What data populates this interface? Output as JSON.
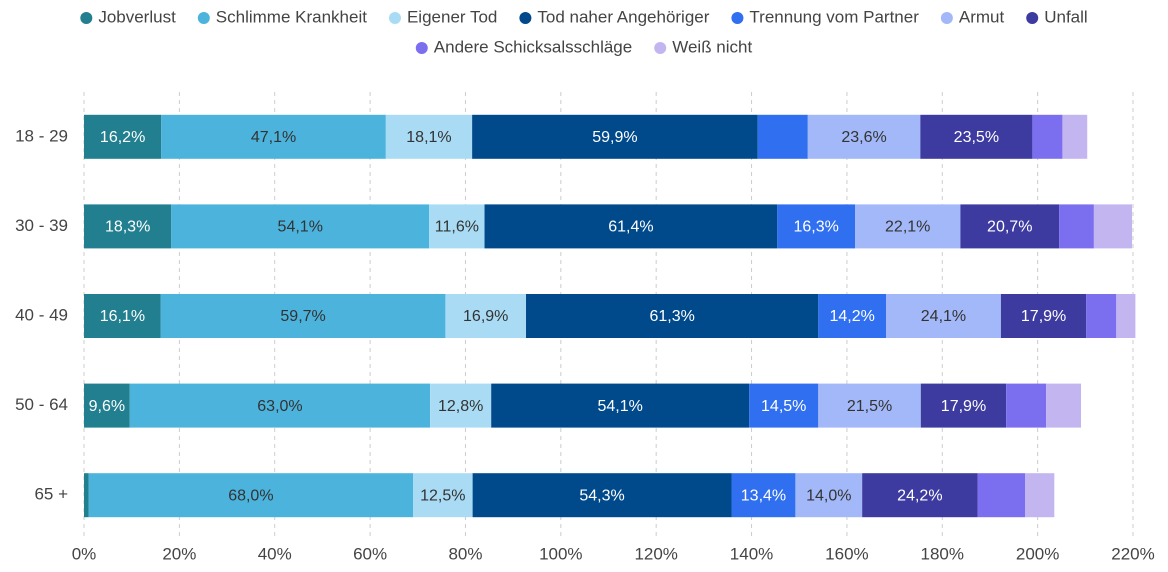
{
  "chart_data": {
    "type": "stacked_barh",
    "categories": [
      "18 - 29",
      "30 - 39",
      "40 - 49",
      "50 - 64",
      "65 +"
    ],
    "series": [
      {
        "name": "Jobverlust",
        "color": "#217f8f",
        "values": [
          16.2,
          18.3,
          16.1,
          9.6,
          1.0
        ],
        "value_labels": [
          "16,2%",
          "18,3%",
          "16,1%",
          "9,6%",
          null
        ]
      },
      {
        "name": "Schlimme Krankheit",
        "color": "#4cb3dd",
        "values": [
          47.1,
          54.1,
          59.7,
          63.0,
          68.0
        ],
        "value_labels": [
          "47,1%",
          "54,1%",
          "59,7%",
          "63,0%",
          "68,0%"
        ]
      },
      {
        "name": "Eigener Tod",
        "color": "#a9dcf4",
        "values": [
          18.1,
          11.6,
          16.9,
          12.8,
          12.5
        ],
        "value_labels": [
          "18,1%",
          "11,6%",
          "16,9%",
          "12,8%",
          "12,5%"
        ]
      },
      {
        "name": "Tod naher Angehöriger",
        "color": "#004a8c",
        "values": [
          59.9,
          61.4,
          61.3,
          54.1,
          54.3
        ],
        "value_labels": [
          "59,9%",
          "61,4%",
          "61,3%",
          "54,1%",
          "54,3%"
        ]
      },
      {
        "name": "Trennung vom Partner",
        "color": "#2f6ff0",
        "values": [
          10.5,
          16.3,
          14.2,
          14.5,
          13.4
        ],
        "value_labels": [
          null,
          "16,3%",
          "14,2%",
          "14,5%",
          "13,4%"
        ]
      },
      {
        "name": "Armut",
        "color": "#a3b8f8",
        "values": [
          23.6,
          22.1,
          24.1,
          21.5,
          14.0
        ],
        "value_labels": [
          "23,6%",
          "22,1%",
          "24,1%",
          "21,5%",
          "14,0%"
        ]
      },
      {
        "name": "Unfall",
        "color": "#3d3aa0",
        "values": [
          23.5,
          20.7,
          17.9,
          17.9,
          24.2
        ],
        "value_labels": [
          "23,5%",
          "20,7%",
          "17,9%",
          "17,9%",
          "24,2%"
        ]
      },
      {
        "name": "Andere Schicksalsschläge",
        "color": "#7b6ff0",
        "values": [
          6.3,
          7.3,
          6.3,
          8.4,
          10.0
        ],
        "value_labels": [
          null,
          null,
          null,
          null,
          null
        ]
      },
      {
        "name": "Weiß nicht",
        "color": "#c3b6f0",
        "values": [
          5.2,
          8.0,
          4.0,
          7.3,
          6.1
        ],
        "value_labels": [
          null,
          null,
          null,
          null,
          null
        ]
      }
    ],
    "xlim": [
      0,
      220
    ],
    "xticks": [
      {
        "value": 0,
        "label": "0%"
      },
      {
        "value": 20,
        "label": "20%"
      },
      {
        "value": 40,
        "label": "40%"
      },
      {
        "value": 60,
        "label": "60%"
      },
      {
        "value": 80,
        "label": "80%"
      },
      {
        "value": 100,
        "label": "100%"
      },
      {
        "value": 120,
        "label": "120%"
      },
      {
        "value": 140,
        "label": "140%"
      },
      {
        "value": 160,
        "label": "160%"
      },
      {
        "value": 180,
        "label": "180%"
      },
      {
        "value": 200,
        "label": "200%"
      },
      {
        "value": 220,
        "label": "220%"
      }
    ],
    "grid": true,
    "legend": "top"
  }
}
